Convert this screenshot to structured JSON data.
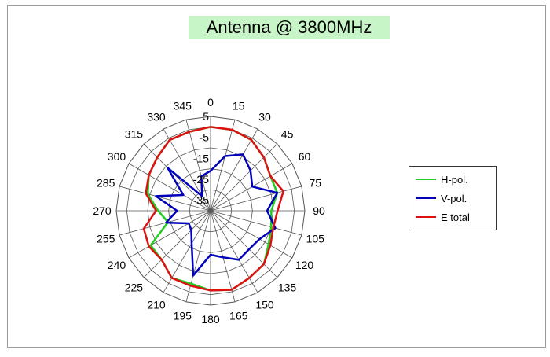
{
  "chart_data": {
    "type": "polar_line",
    "title": "Antenna @ 3800MHz",
    "angle_labels": [
      "0",
      "15",
      "30",
      "45",
      "60",
      "75",
      "90",
      "105",
      "120",
      "135",
      "150",
      "165",
      "180",
      "195",
      "210",
      "225",
      "240",
      "255",
      "270",
      "285",
      "300",
      "315",
      "330",
      "345"
    ],
    "radial_labels": [
      "5",
      "-5",
      "-15",
      "-25",
      "-35"
    ],
    "rlim": [
      -40,
      5
    ],
    "grid": true,
    "legend_position": "right",
    "angles": [
      0,
      15,
      30,
      45,
      60,
      75,
      90,
      105,
      120,
      135,
      150,
      165,
      180,
      195,
      210,
      225,
      240,
      255,
      270,
      285,
      300,
      315,
      330,
      345
    ],
    "series": [
      {
        "name": "H-pol.",
        "color": "#22cc22",
        "values": [
          0,
          0,
          -1,
          -4,
          -7,
          -7,
          -11,
          -10,
          -8,
          -4,
          -3,
          -1,
          -2,
          -4,
          -3,
          -7,
          -7,
          -19,
          -15,
          -9,
          -6,
          -4,
          -1,
          -1
        ]
      },
      {
        "name": "V-pol.",
        "color": "#0000bb",
        "values": [
          -21,
          -13,
          -9,
          -13,
          -17,
          -7,
          -13,
          -8,
          -13,
          -14,
          -13,
          -17,
          -19,
          -8,
          -22,
          -27,
          -28,
          -18,
          -24,
          -13,
          -25,
          -11,
          -32,
          -23
        ]
      },
      {
        "name": "E total",
        "color": "#dd1111",
        "values": [
          0,
          0,
          -1,
          -4,
          -7,
          -4,
          -8,
          -9,
          -7,
          -4,
          -3,
          -1,
          -2,
          -3,
          -3,
          -7,
          -6,
          -7,
          -14,
          -8,
          -6,
          -4,
          -1,
          -1
        ]
      }
    ]
  }
}
